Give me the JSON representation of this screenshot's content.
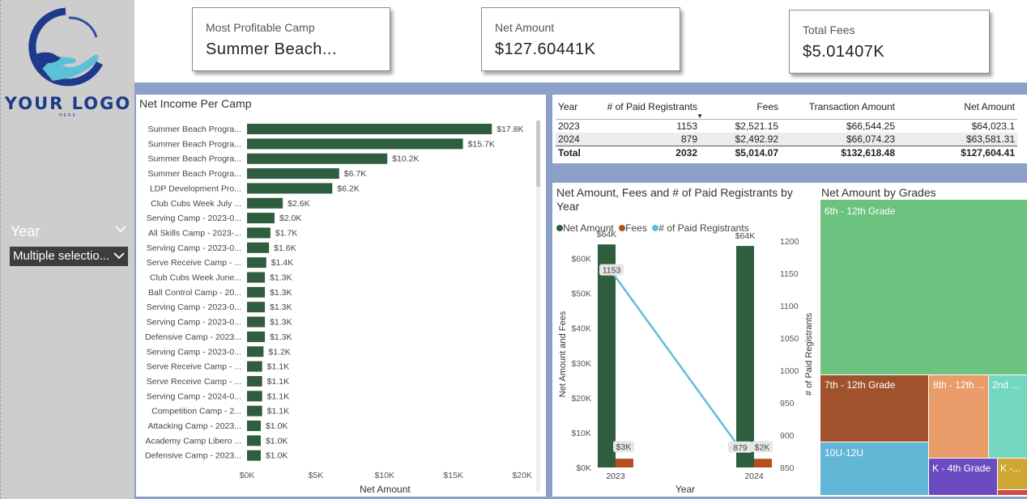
{
  "logo": {
    "text": "YOUR LOGO",
    "subtext": "HERE"
  },
  "filter": {
    "label": "Year",
    "value": "Multiple selectio..."
  },
  "cards": [
    {
      "label": "Most Profitable Camp",
      "value": "Summer Beach..."
    },
    {
      "label": "Net Amount",
      "value": "$127.60441K"
    },
    {
      "label": "Total Fees",
      "value": "$5.01407K"
    }
  ],
  "bar_chart": {
    "title": "Net Income Per Camp",
    "xlabel": "Net Amount",
    "ticks": [
      "$0K",
      "$5K",
      "$10K",
      "$15K",
      "$20K"
    ],
    "bar_color": "#2e5e3e"
  },
  "table": {
    "headers": [
      "Year",
      "# of Paid Registrants",
      "Fees",
      "Transaction Amount",
      "Net Amount"
    ],
    "rows": [
      [
        "2023",
        "1153",
        "$2,521.15",
        "$66,544.25",
        "$64,023.1"
      ],
      [
        "2024",
        "879",
        "$2,492.92",
        "$66,074.23",
        "$63,581.31"
      ]
    ],
    "total": [
      "Total",
      "2032",
      "$5,014.07",
      "$132,618.48",
      "$127,604.41"
    ]
  },
  "combo": {
    "title_line1": "Net Amount, Fees and # of Paid Registrants by",
    "title_line2": "Year",
    "legend": [
      "Net Amount",
      "Fees",
      "# of Paid Registrants"
    ],
    "legend_colors": [
      "#2e5e3e",
      "#b5501e",
      "#62bcd8"
    ],
    "ylabel": "Net Amount and Fees",
    "y2label": "# of Paid Registrants",
    "xlabel": "Year",
    "y_ticks": [
      "$0K",
      "$10K",
      "$20K",
      "$30K",
      "$40K",
      "$50K",
      "$60K"
    ],
    "y2_ticks": [
      "850",
      "900",
      "950",
      "1000",
      "1050",
      "1100",
      "1150",
      "1200"
    ],
    "net_labels": [
      "$64K",
      "$64K"
    ],
    "fee_labels": [
      "$3K",
      "$2K"
    ],
    "reg_labels": [
      "1153",
      "879"
    ]
  },
  "treemap": {
    "title": "Net Amount by Grades",
    "cells": [
      {
        "label": "6th - 12th Grade",
        "color": "#6cc27f"
      },
      {
        "label": "7th - 12th Grade",
        "color": "#a0522d"
      },
      {
        "label": "8th - 12th ...",
        "color": "#e99c6a"
      },
      {
        "label": "2nd ...",
        "color": "#74d7c0"
      },
      {
        "label": "10U-12U",
        "color": "#62b6d6"
      },
      {
        "label": "K - 4th Grade",
        "color": "#6b4bbf"
      },
      {
        "label": "K -...",
        "color": "#cfa834"
      },
      {
        "label": "",
        "color": "#d04a4a"
      }
    ]
  },
  "chart_data": [
    {
      "type": "bar",
      "title": "Net Income Per Camp",
      "xlabel": "Net Amount",
      "categories": [
        "Summer Beach Progra...",
        "Summer Beach Progra...",
        "Summer Beach Progra...",
        "Summer Beach Progra...",
        "LDP Development Pro...",
        "Club Cubs Week July ...",
        "Serving Camp - 2023-0...",
        "All Skills Camp - 2023-...",
        "Serving Camp - 2023-0...",
        "Serve Receive Camp - ...",
        "Club Cubs Week June...",
        "Ball Control Camp - 20...",
        "Serving Camp - 2023-0...",
        "Serving Camp - 2023-0...",
        "Defensive Camp - 2023...",
        "Serving Camp - 2023-0...",
        "Serve Receive Camp - ...",
        "Serve Receive Camp - ...",
        "Serving Camp - 2024-0...",
        "Competition Camp - 2...",
        "Attacking Camp - 2023...",
        "Academy Camp Libero ...",
        "Defensive Camp - 2023..."
      ],
      "values": [
        17.8,
        15.7,
        10.2,
        6.7,
        6.2,
        2.6,
        2.0,
        1.7,
        1.6,
        1.4,
        1.3,
        1.3,
        1.3,
        1.3,
        1.3,
        1.2,
        1.1,
        1.1,
        1.1,
        1.1,
        1.0,
        1.0,
        1.0
      ],
      "value_labels": [
        "$17.8K",
        "$15.7K",
        "$10.2K",
        "$6.7K",
        "$6.2K",
        "$2.6K",
        "$2.0K",
        "$1.7K",
        "$1.6K",
        "$1.4K",
        "$1.3K",
        "$1.3K",
        "$1.3K",
        "$1.3K",
        "$1.3K",
        "$1.2K",
        "$1.1K",
        "$1.1K",
        "$1.1K",
        "$1.1K",
        "$1.0K",
        "$1.0K",
        "$1.0K"
      ],
      "xlim": [
        0,
        20
      ]
    },
    {
      "type": "bar",
      "title": "Net Amount, Fees and # of Paid Registrants by Year",
      "categories": [
        "2023",
        "2024"
      ],
      "series": [
        {
          "name": "Net Amount",
          "values": [
            64.02,
            63.58
          ],
          "axis": "left"
        },
        {
          "name": "Fees",
          "values": [
            2.52,
            2.49
          ],
          "axis": "left"
        },
        {
          "name": "# of Paid Registrants",
          "values": [
            1153,
            879
          ],
          "axis": "right",
          "type": "line"
        }
      ],
      "ylim": [
        0,
        65
      ],
      "y2lim": [
        850,
        1200
      ],
      "xlabel": "Year",
      "ylabel": "Net Amount and Fees",
      "y2label": "# of Paid Registrants"
    }
  ]
}
